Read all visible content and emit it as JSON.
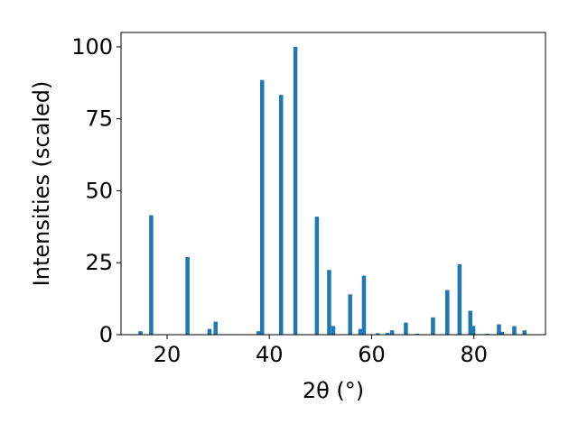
{
  "chart_data": {
    "type": "bar",
    "title": "",
    "xlabel": "2θ (°)",
    "ylabel": "Intensities (scaled)",
    "xlim": [
      11,
      94
    ],
    "ylim": [
      0,
      105
    ],
    "x_ticks": [
      20,
      40,
      60,
      80
    ],
    "y_ticks": [
      0,
      25,
      50,
      75,
      100
    ],
    "grid": false,
    "bar_color": "#1f77b4",
    "bar_width_deg": 0.8,
    "x": [
      14.8,
      16.9,
      24.0,
      28.3,
      29.5,
      37.9,
      38.6,
      42.3,
      45.1,
      49.3,
      51.7,
      52.5,
      55.8,
      57.8,
      58.5,
      61.2,
      63.1,
      64.0,
      66.7,
      68.9,
      72.0,
      74.8,
      77.2,
      79.3,
      79.9,
      82.6,
      84.9,
      85.5,
      87.9,
      89.9
    ],
    "values": [
      1.2,
      41.5,
      27.0,
      2.0,
      4.5,
      1.2,
      88.5,
      83.3,
      100.0,
      41.0,
      22.5,
      3.0,
      14.0,
      2.0,
      20.5,
      0.5,
      0.6,
      1.5,
      4.2,
      0.3,
      6.0,
      15.5,
      24.5,
      8.3,
      3.0,
      0.3,
      3.6,
      1.0,
      3.0,
      1.5
    ]
  }
}
